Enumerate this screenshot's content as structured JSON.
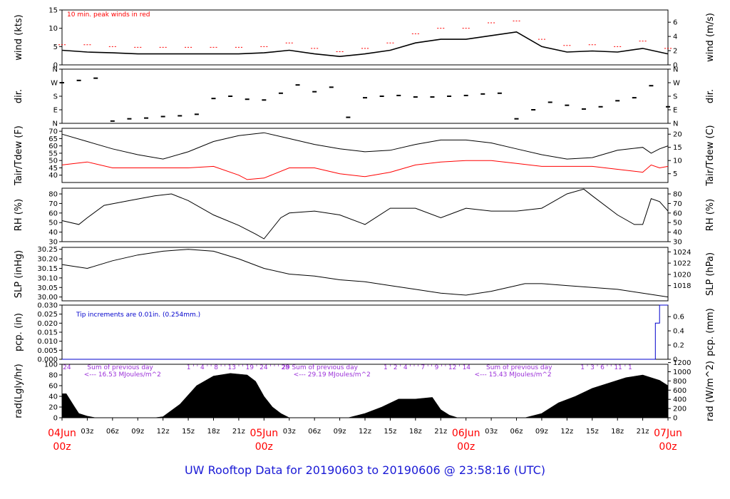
{
  "footer_title": "UW Rooftop Data for 20190603  to  20190606 @ 23:58:16  (UTC)",
  "colors": {
    "series": "#000000",
    "peak": "#ff0000",
    "dewpoint": "#ff0000",
    "note": "#ff0000",
    "precip": "#0000cc",
    "annotation": "#9b30d9",
    "date_label": "#ff0000",
    "axes": "#000000",
    "title": "#1a1ad6"
  },
  "chart_data": [
    {
      "id": "wind",
      "type": "line",
      "ylabel_left": "wind (kts)",
      "ylabel_right": "wind (m/s)",
      "yticks_left": [
        "0",
        "5",
        "10",
        "15"
      ],
      "ylim_left": [
        0,
        15
      ],
      "yticks_right": [
        "0",
        "2",
        "4",
        "6"
      ],
      "ylim_right": [
        0,
        7.72
      ],
      "note": "10 min. peak winds in red",
      "series": [
        {
          "name": "wind",
          "color": "#000000",
          "x": [
            0,
            3,
            6,
            9,
            12,
            15,
            18,
            21,
            24,
            27,
            30,
            33,
            36,
            39,
            42,
            45,
            48,
            51,
            54,
            57,
            60,
            63,
            66,
            69,
            72
          ],
          "y": [
            4,
            3.5,
            3.3,
            3,
            3,
            3,
            3,
            3,
            3.3,
            4,
            3,
            2.3,
            3,
            4,
            6,
            7,
            7,
            8,
            9,
            5,
            3.5,
            3.8,
            3.5,
            4.5,
            3
          ]
        },
        {
          "name": "10 min. peak winds",
          "color": "#ff0000",
          "x": [
            0,
            3,
            6,
            9,
            12,
            15,
            18,
            21,
            24,
            27,
            30,
            33,
            36,
            39,
            42,
            45,
            48,
            51,
            54,
            57,
            60,
            63,
            66,
            69,
            72
          ],
          "y": [
            5.5,
            5.5,
            5,
            4.8,
            4.8,
            4.8,
            4.8,
            4.8,
            5,
            6,
            4.5,
            3.6,
            4.5,
            6,
            8.5,
            10,
            10,
            11.5,
            12,
            7,
            5.3,
            5.5,
            5,
            6.5,
            4.5
          ]
        }
      ]
    },
    {
      "id": "dir",
      "type": "scatter",
      "ylabel_left": "dir.",
      "ylabel_right": "dir.",
      "yticks_left": [
        "N",
        "E",
        "S",
        "W",
        "N"
      ],
      "ylim_left": [
        0,
        360
      ],
      "yticks_right": [
        "N",
        "E",
        "S",
        "W",
        "N"
      ],
      "series": [
        {
          "name": "direction",
          "color": "#000000",
          "x": [
            0,
            2,
            4,
            6,
            8,
            10,
            12,
            14,
            16,
            18,
            20,
            22,
            24,
            26,
            28,
            30,
            32,
            34,
            36,
            38,
            40,
            42,
            44,
            46,
            48,
            50,
            52,
            54,
            56,
            58,
            60,
            62,
            64,
            66,
            68,
            70,
            72
          ],
          "y": [
            270,
            285,
            300,
            15,
            30,
            35,
            45,
            50,
            60,
            165,
            180,
            160,
            155,
            200,
            255,
            210,
            240,
            40,
            170,
            180,
            185,
            175,
            175,
            180,
            185,
            195,
            200,
            30,
            90,
            140,
            120,
            95,
            110,
            150,
            170,
            250,
            110
          ]
        }
      ]
    },
    {
      "id": "temp",
      "type": "line",
      "ylabel_left": "Tair/Tdew (F)",
      "ylabel_right": "Tair/Tdew (C)",
      "yticks_left": [
        "40",
        "45",
        "50",
        "55",
        "60",
        "65",
        "70"
      ],
      "ylim_left": [
        35,
        72
      ],
      "yticks_right": [
        "5",
        "10",
        "15",
        "20"
      ],
      "ylim_right": [
        1.67,
        22.22
      ],
      "series": [
        {
          "name": "Tair",
          "color": "#000000",
          "x": [
            0,
            3,
            6,
            9,
            12,
            15,
            18,
            21,
            24,
            27,
            30,
            33,
            36,
            39,
            42,
            45,
            48,
            51,
            54,
            57,
            60,
            63,
            66,
            69,
            70,
            71,
            72
          ],
          "y": [
            68,
            63,
            58,
            54,
            51,
            56,
            63,
            67,
            69,
            65,
            61,
            58,
            56,
            57,
            61,
            64,
            64,
            62,
            58,
            54,
            51,
            52,
            57,
            59,
            55,
            58,
            60
          ]
        },
        {
          "name": "Tdew",
          "color": "#ff0000",
          "x": [
            0,
            3,
            6,
            9,
            12,
            15,
            18,
            21,
            22,
            24,
            27,
            30,
            33,
            36,
            39,
            42,
            45,
            48,
            51,
            54,
            57,
            60,
            63,
            66,
            69,
            70,
            71,
            72
          ],
          "y": [
            47,
            49,
            45,
            45,
            45,
            45,
            46,
            40,
            37,
            38,
            45,
            45,
            41,
            39,
            42,
            47,
            49,
            50,
            50,
            48,
            46,
            46,
            46,
            44,
            42,
            47,
            45,
            46
          ]
        }
      ]
    },
    {
      "id": "rh",
      "type": "line",
      "ylabel_left": "RH (%)",
      "ylabel_right": "RH (%)",
      "yticks_left": [
        "30",
        "40",
        "50",
        "60",
        "70",
        "80"
      ],
      "ylim_left": [
        30,
        86
      ],
      "yticks_right": [
        "30",
        "40",
        "50",
        "60",
        "70",
        "80"
      ],
      "ylim_right": [
        30,
        86
      ],
      "series": [
        {
          "name": "RH",
          "color": "#000000",
          "x": [
            0,
            2,
            3,
            5,
            8,
            11,
            13,
            15,
            18,
            21,
            23,
            24,
            26,
            27,
            30,
            33,
            36,
            39,
            42,
            45,
            48,
            51,
            54,
            57,
            58,
            60,
            62,
            63,
            66,
            68,
            69,
            70,
            71,
            72
          ],
          "y": [
            52,
            48,
            55,
            68,
            73,
            78,
            80,
            73,
            58,
            47,
            38,
            33,
            55,
            60,
            62,
            58,
            48,
            65,
            65,
            55,
            65,
            62,
            62,
            65,
            70,
            80,
            85,
            78,
            58,
            48,
            48,
            75,
            72,
            62
          ]
        }
      ]
    },
    {
      "id": "slp",
      "type": "line",
      "ylabel_left": "SLP (inHg)",
      "ylabel_right": "SLP (hPa)",
      "yticks_left": [
        "30.00",
        "30.05",
        "30.10",
        "30.15",
        "30.20",
        "30.25"
      ],
      "ylim_left": [
        29.98,
        30.26
      ],
      "yticks_right": [
        "1018",
        "1020",
        "1022",
        "1024"
      ],
      "ylim_right": [
        1015.3,
        1024.8
      ],
      "series": [
        {
          "name": "SLP",
          "color": "#000000",
          "x": [
            0,
            3,
            6,
            9,
            12,
            15,
            18,
            21,
            24,
            27,
            30,
            33,
            36,
            39,
            42,
            45,
            48,
            51,
            54,
            55,
            57,
            60,
            63,
            66,
            69,
            72
          ],
          "y": [
            30.17,
            30.15,
            30.19,
            30.22,
            30.24,
            30.25,
            30.24,
            30.2,
            30.15,
            30.12,
            30.11,
            30.09,
            30.08,
            30.06,
            30.04,
            30.02,
            30.01,
            30.03,
            30.06,
            30.07,
            30.07,
            30.06,
            30.05,
            30.04,
            30.02,
            30.0
          ]
        }
      ]
    },
    {
      "id": "pcp",
      "type": "line",
      "ylabel_left": "pcp. (in)",
      "ylabel_right": "pcp. (mm)",
      "yticks_left": [
        "0.000",
        "0.005",
        "0.010",
        "0.015",
        "0.020",
        "0.025",
        "0.030"
      ],
      "ylim_left": [
        0,
        0.03
      ],
      "yticks_right": [
        "0",
        "0.2",
        "0.4",
        "0.6"
      ],
      "ylim_right": [
        0,
        0.762
      ],
      "note": "Tip increments are 0.01in. (0.254mm.)",
      "series": [
        {
          "name": "precipitation",
          "color": "#0000cc",
          "x": [
            0,
            70.5,
            70.5,
            71.0,
            71.0,
            72
          ],
          "y": [
            0,
            0,
            0.02,
            0.02,
            0.03,
            0.03
          ]
        }
      ]
    },
    {
      "id": "rad",
      "type": "area",
      "ylabel_left": "rad(Lgly/hr)",
      "ylabel_right": "rad (W/m^2)",
      "yticks_left": [
        "0",
        "20",
        "40",
        "60",
        "80",
        "100"
      ],
      "ylim_left": [
        0,
        100
      ],
      "yticks_right": [
        "0",
        "200",
        "400",
        "600",
        "800",
        "1000",
        "1200"
      ],
      "ylim_right": [
        0,
        1163
      ],
      "series": [
        {
          "name": "radiation",
          "color": "#000000",
          "x": [
            0,
            0.5,
            1.5,
            2.0,
            3.0,
            4.0,
            11.0,
            12.0,
            14.0,
            16.0,
            18.0,
            20.0,
            22.0,
            23.0,
            24.0,
            25.0,
            26.0,
            27.0,
            34.0,
            36.0,
            38.0,
            40.0,
            42.0,
            44.0,
            45.0,
            46.0,
            47.0,
            55.0,
            57.0,
            59.0,
            61.0,
            63.0,
            65.0,
            67.0,
            69.0,
            71.0,
            72.0
          ],
          "y": [
            45,
            45,
            20,
            8,
            3,
            0,
            0,
            2,
            25,
            60,
            78,
            83,
            80,
            68,
            40,
            20,
            8,
            0,
            0,
            8,
            20,
            35,
            35,
            38,
            15,
            5,
            0,
            0,
            8,
            28,
            40,
            55,
            65,
            75,
            80,
            70,
            60
          ]
        }
      ],
      "annotations": [
        {
          "x": 0.1,
          "row": 1,
          "text": "24"
        },
        {
          "x": 14.8,
          "row": 1,
          "text": "1 ' ' 4 ' ' 8 ' ' 13 ' ' 19 ' 24 ' ' ' 28"
        },
        {
          "x": 26.1,
          "row": 1,
          "text": "29 Sum of previous day"
        },
        {
          "x": 27.5,
          "row": 2,
          "text": "<--- 29.19 MJoules/m^2"
        },
        {
          "x": 3.0,
          "row": 1,
          "text": "Sum of previous day"
        },
        {
          "x": 2.6,
          "row": 2,
          "text": "<--- 16.53 MJoules/m^2"
        },
        {
          "x": 38.2,
          "row": 1,
          "text": "1 ' 2 ' 4 ' ' ' 7 ' ' 9 ' ' 12 ' 14"
        },
        {
          "x": 50.4,
          "row": 1,
          "text": "Sum of previous day"
        },
        {
          "x": 49.0,
          "row": 2,
          "text": "<--- 15.43 MJoules/m^2"
        },
        {
          "x": 61.6,
          "row": 1,
          "text": "1 ' 3 ' 6 ' ' 11 ' 1"
        }
      ]
    }
  ],
  "x_axis": {
    "ticks": [
      {
        "h": 0,
        "label": ""
      },
      {
        "h": 3,
        "label": "03z"
      },
      {
        "h": 6,
        "label": "06z"
      },
      {
        "h": 9,
        "label": "09z"
      },
      {
        "h": 12,
        "label": "12z"
      },
      {
        "h": 15,
        "label": "15z"
      },
      {
        "h": 18,
        "label": "18z"
      },
      {
        "h": 21,
        "label": "21z"
      },
      {
        "h": 24,
        "label": ""
      },
      {
        "h": 27,
        "label": "03z"
      },
      {
        "h": 30,
        "label": "06z"
      },
      {
        "h": 33,
        "label": "09z"
      },
      {
        "h": 36,
        "label": "12z"
      },
      {
        "h": 39,
        "label": "15z"
      },
      {
        "h": 42,
        "label": "18z"
      },
      {
        "h": 45,
        "label": "21z"
      },
      {
        "h": 48,
        "label": ""
      },
      {
        "h": 51,
        "label": "03z"
      },
      {
        "h": 54,
        "label": "06z"
      },
      {
        "h": 57,
        "label": "09z"
      },
      {
        "h": 60,
        "label": "12z"
      },
      {
        "h": 63,
        "label": "15z"
      },
      {
        "h": 66,
        "label": "18z"
      },
      {
        "h": 69,
        "label": "21z"
      },
      {
        "h": 72,
        "label": ""
      }
    ],
    "dates": [
      {
        "h": 0,
        "day": "04Jun",
        "time": "00z"
      },
      {
        "h": 24,
        "day": "05Jun",
        "time": "00z"
      },
      {
        "h": 48,
        "day": "06Jun",
        "time": "00z"
      },
      {
        "h": 72,
        "day": "07Jun",
        "time": "00z"
      }
    ],
    "xlim": [
      0,
      72
    ]
  }
}
